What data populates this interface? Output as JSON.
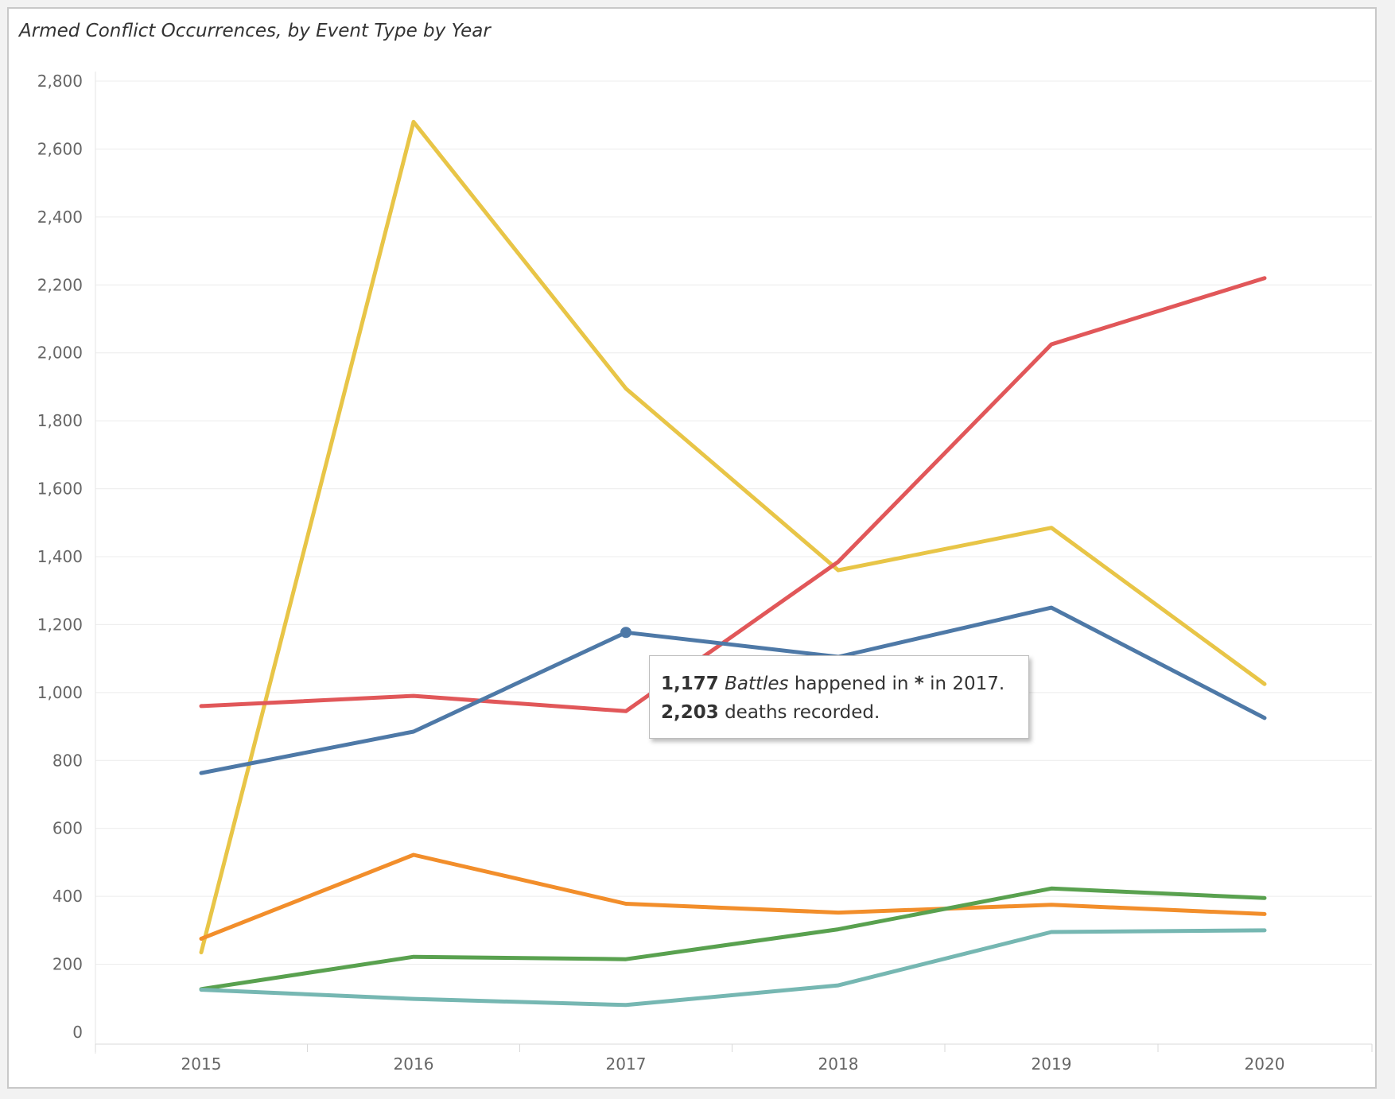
{
  "chart_data": {
    "type": "line",
    "title": "Armed Conflict Occurrences, by Event Type by Year",
    "xlabel": "",
    "ylabel": "",
    "x": [
      "2015",
      "2016",
      "2017",
      "2018",
      "2019",
      "2020"
    ],
    "ylim": [
      0,
      2800
    ],
    "yticks": [
      "0",
      "200",
      "400",
      "600",
      "800",
      "1,000",
      "1,200",
      "1,400",
      "1,600",
      "1,800",
      "2,000",
      "2,200",
      "2,400",
      "2,600",
      "2,800"
    ],
    "grid": true,
    "series": [
      {
        "color": "#e8c547",
        "values": [
          235,
          2680,
          1895,
          1360,
          1485,
          1025
        ]
      },
      {
        "color": "#e15759",
        "values": [
          960,
          990,
          945,
          1385,
          2025,
          2220
        ]
      },
      {
        "color": "#4e79a7",
        "values": [
          763,
          885,
          1177,
          1105,
          1250,
          925
        ]
      },
      {
        "color": "#f28e2b",
        "values": [
          275,
          522,
          378,
          352,
          375,
          348
        ]
      },
      {
        "color": "#59a14f",
        "values": [
          127,
          222,
          215,
          303,
          423,
          395
        ]
      },
      {
        "color": "#76b7b2",
        "values": [
          125,
          98,
          80,
          138,
          295,
          300
        ]
      }
    ],
    "highlight": {
      "series_index": 2,
      "point_index": 2
    }
  },
  "tooltip": {
    "line1_value": "1,177",
    "line1_event": "Battles",
    "line1_mid": "happened in",
    "line1_place": "*",
    "line1_end": "in 2017.",
    "line2_value": "2,203",
    "line2_text": "deaths recorded."
  }
}
